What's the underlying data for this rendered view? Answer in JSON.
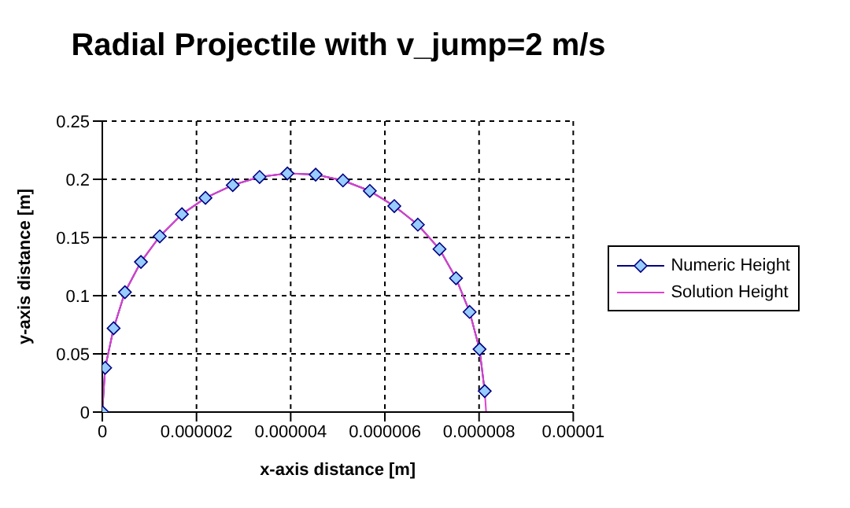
{
  "chart_data": {
    "type": "line",
    "title": "Radial Projectile with v_jump=2 m/s",
    "xlabel": "x-axis distance [m]",
    "ylabel": "y-axis distance [m]",
    "xlim": [
      0,
      1e-05
    ],
    "xticks": [
      0,
      {
        "value": 2e-06,
        "label": "0.000002"
      },
      {
        "value": 4e-06,
        "label": "0.000004"
      },
      {
        "value": 6e-06,
        "label": "0.000006"
      },
      {
        "value": 8e-06,
        "label": "0.000008"
      },
      {
        "value": 1e-05,
        "label": "0.00001"
      }
    ],
    "ylim": [
      0,
      0.25
    ],
    "yticks": [
      0,
      0.05,
      0.1,
      0.15,
      0.2,
      0.25
    ],
    "grid": true,
    "legend": "right",
    "series": [
      {
        "name": "Numeric Height",
        "color": "#000080",
        "marker": "diamond",
        "x": [
          0,
          6e-08,
          2.4e-07,
          4.8e-07,
          8.2e-07,
          1.22e-06,
          1.69e-06,
          2.19e-06,
          2.77e-06,
          3.34e-06,
          3.93e-06,
          4.53e-06,
          5.11e-06,
          5.68e-06,
          6.2e-06,
          6.7e-06,
          7.16e-06,
          7.51e-06,
          7.8e-06,
          8.01e-06,
          8.12e-06
        ],
        "values": [
          0,
          0.038,
          0.072,
          0.103,
          0.129,
          0.151,
          0.17,
          0.184,
          0.195,
          0.202,
          0.205,
          0.204,
          0.199,
          0.19,
          0.177,
          0.161,
          0.14,
          0.115,
          0.086,
          0.054,
          0.018
        ]
      },
      {
        "name": "Solution Height",
        "color": "#e040d0",
        "marker": "none",
        "x": [
          0,
          6e-08,
          2.4e-07,
          4.8e-07,
          8.2e-07,
          1.22e-06,
          1.69e-06,
          2.19e-06,
          2.77e-06,
          3.34e-06,
          3.93e-06,
          4.53e-06,
          5.11e-06,
          5.68e-06,
          6.2e-06,
          6.7e-06,
          7.16e-06,
          7.51e-06,
          7.8e-06,
          8.01e-06,
          8.12e-06,
          8.15e-06
        ],
        "values": [
          0,
          0.038,
          0.072,
          0.103,
          0.129,
          0.151,
          0.17,
          0.184,
          0.195,
          0.202,
          0.205,
          0.204,
          0.199,
          0.19,
          0.177,
          0.161,
          0.14,
          0.115,
          0.086,
          0.054,
          0.018,
          0
        ]
      }
    ]
  }
}
